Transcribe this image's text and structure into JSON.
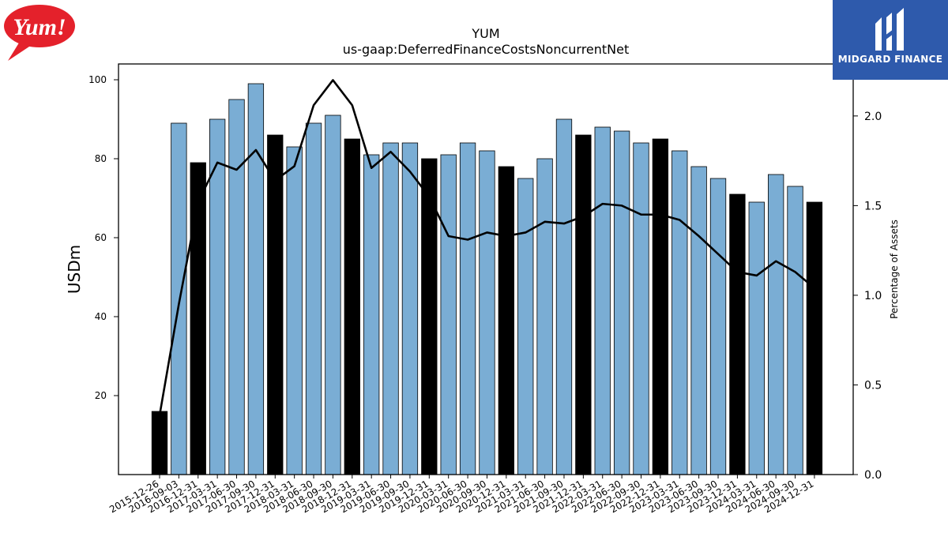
{
  "logos": {
    "left_brand": "Yum!",
    "right_brand": "MIDGARD FINANCE"
  },
  "colors": {
    "bar_annual": "#000000",
    "bar_quarterly": "#7aadd4",
    "line": "#000000",
    "midgard_bg": "#2e5aac",
    "yum_red": "#e4212b"
  },
  "chart_data": {
    "type": "bar",
    "title": "YUM",
    "subtitle": "us-gaap:DeferredFinanceCostsNoncurrentNet",
    "ylabel": "USDm",
    "y2label": "Percentage of Assets",
    "ylim": [
      0,
      104
    ],
    "y2lim": [
      0,
      2.29
    ],
    "yticks": [
      20,
      40,
      60,
      80,
      100
    ],
    "y2ticks": [
      "0.0",
      "0.5",
      "1.0",
      "1.5",
      "2.0"
    ],
    "grid": false,
    "categories": [
      "2015-12-26",
      "2016-09-03",
      "2016-12-31",
      "2017-03-31",
      "2017-06-30",
      "2017-09-30",
      "2017-12-31",
      "2018-03-31",
      "2018-06-30",
      "2018-09-30",
      "2018-12-31",
      "2019-03-31",
      "2019-06-30",
      "2019-09-30",
      "2019-12-31",
      "2020-03-31",
      "2020-06-30",
      "2020-09-30",
      "2020-12-31",
      "2021-03-31",
      "2021-06-30",
      "2021-09-30",
      "2021-12-31",
      "2022-03-31",
      "2022-06-30",
      "2022-09-30",
      "2022-12-31",
      "2023-03-31",
      "2023-06-30",
      "2023-09-30",
      "2023-12-31",
      "2024-03-31",
      "2024-06-30",
      "2024-09-30",
      "2024-12-31"
    ],
    "values": [
      16,
      89,
      79,
      90,
      95,
      99,
      86,
      83,
      89,
      91,
      85,
      81,
      84,
      84,
      80,
      81,
      84,
      82,
      78,
      75,
      80,
      90,
      86,
      88,
      87,
      84,
      85,
      82,
      78,
      75,
      71,
      69,
      76,
      73,
      69
    ],
    "annual": [
      true,
      false,
      true,
      false,
      false,
      false,
      true,
      false,
      false,
      false,
      true,
      false,
      false,
      false,
      true,
      false,
      false,
      false,
      true,
      false,
      false,
      false,
      true,
      false,
      false,
      false,
      true,
      false,
      false,
      false,
      true,
      false,
      false,
      false,
      true
    ],
    "series": [
      {
        "values": [
          0.33,
          0.95,
          1.52,
          1.74,
          1.7,
          1.81,
          1.64,
          1.72,
          2.06,
          2.2,
          2.06,
          1.71,
          1.8,
          1.69,
          1.55,
          1.33,
          1.31,
          1.35,
          1.33,
          1.35,
          1.41,
          1.4,
          1.44,
          1.51,
          1.5,
          1.45,
          1.45,
          1.42,
          1.33,
          1.23,
          1.13,
          1.11,
          1.19,
          1.13,
          1.04
        ]
      }
    ]
  }
}
